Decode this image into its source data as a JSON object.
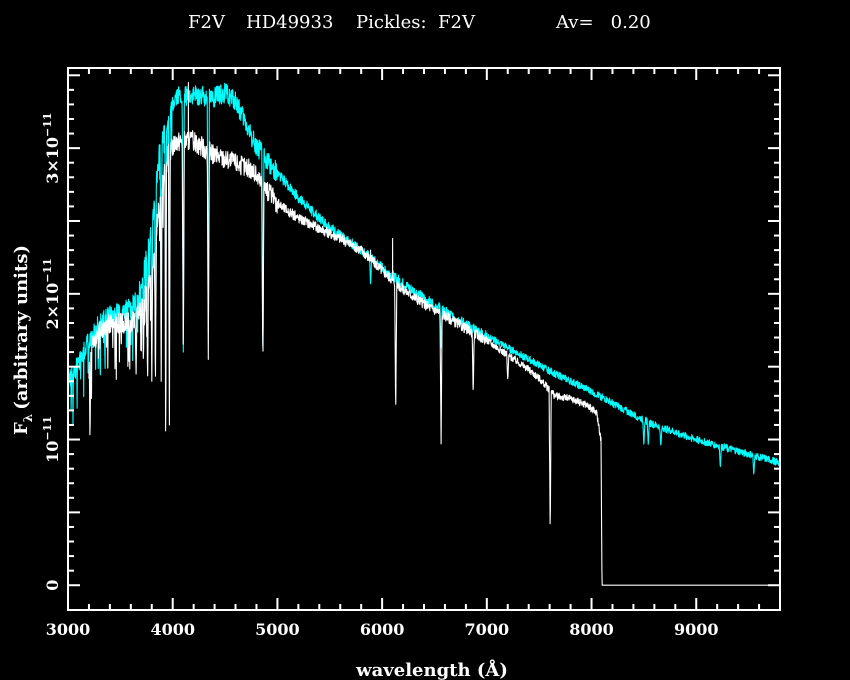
{
  "title": {
    "spectral_type": "F2V",
    "star": "HD49933",
    "template": "Pickles:  F2V",
    "extinction": "Av=   0.20"
  },
  "chart_data": {
    "type": "line",
    "xlabel": "wavelength (Å)",
    "ylabel": "F",
    "ylabel_sub": "λ",
    "ylabel_suffix": "(arbitrary units)",
    "xlim": [
      3000,
      9800
    ],
    "ylim": [
      -1.7e-12,
      3.55e-11
    ],
    "x_ticks": [
      {
        "value": 3000,
        "label": "3000"
      },
      {
        "value": 4000,
        "label": "4000"
      },
      {
        "value": 5000,
        "label": "5000"
      },
      {
        "value": 6000,
        "label": "6000"
      },
      {
        "value": 7000,
        "label": "7000"
      },
      {
        "value": 8000,
        "label": "8000"
      },
      {
        "value": 9000,
        "label": "9000"
      }
    ],
    "y_ticks": [
      {
        "value": 0,
        "mantissa": "0",
        "exponent": ""
      },
      {
        "value": 1e-11,
        "mantissa": "10",
        "exponent": "−11"
      },
      {
        "value": 2e-11,
        "mantissa": "2×10",
        "exponent": "−11"
      },
      {
        "value": 3e-11,
        "mantissa": "3×10",
        "exponent": "−11"
      }
    ],
    "grid": false,
    "colors": {
      "background": "#000000",
      "axes": "#ffffff",
      "observed": "#ffffff",
      "template": "#00ffff"
    },
    "series": [
      {
        "color": "#00ffff",
        "continuum": [
          [
            3000,
            1.4e-11
          ],
          [
            3100,
            1.52e-11
          ],
          [
            3200,
            1.68e-11
          ],
          [
            3300,
            1.8e-11
          ],
          [
            3400,
            1.85e-11
          ],
          [
            3500,
            1.87e-11
          ],
          [
            3600,
            1.9e-11
          ],
          [
            3700,
            2.05e-11
          ],
          [
            3800,
            2.45e-11
          ],
          [
            3870,
            2.95e-11
          ],
          [
            3950,
            3.2e-11
          ],
          [
            4030,
            3.36e-11
          ],
          [
            4200,
            3.36e-11
          ],
          [
            4400,
            3.35e-11
          ],
          [
            4500,
            3.38e-11
          ],
          [
            4600,
            3.32e-11
          ],
          [
            4750,
            3.08e-11
          ],
          [
            4860,
            2.95e-11
          ],
          [
            5000,
            2.83e-11
          ],
          [
            5200,
            2.66e-11
          ],
          [
            5400,
            2.52e-11
          ],
          [
            5600,
            2.4e-11
          ],
          [
            5800,
            2.3e-11
          ],
          [
            6000,
            2.18e-11
          ],
          [
            6200,
            2.07e-11
          ],
          [
            6400,
            1.97e-11
          ],
          [
            6600,
            1.88e-11
          ],
          [
            6800,
            1.79e-11
          ],
          [
            7000,
            1.71e-11
          ],
          [
            7200,
            1.63e-11
          ],
          [
            7400,
            1.55e-11
          ],
          [
            7600,
            1.47e-11
          ],
          [
            7800,
            1.4e-11
          ],
          [
            8000,
            1.33e-11
          ],
          [
            8200,
            1.25e-11
          ],
          [
            8400,
            1.17e-11
          ],
          [
            8600,
            1.1e-11
          ],
          [
            8800,
            1.05e-11
          ],
          [
            9000,
            1e-11
          ],
          [
            9200,
            9.6e-12
          ],
          [
            9400,
            9.2e-12
          ],
          [
            9600,
            8.8e-12
          ],
          [
            9800,
            8.4e-12
          ]
        ],
        "absorption_lines": [
          [
            3200,
            1.65e-11
          ],
          [
            3650,
            1.82e-11
          ],
          [
            3720,
            1.75e-11
          ],
          [
            3760,
            1.55e-11
          ],
          [
            3800,
            1.65e-11
          ],
          [
            3835,
            1.6e-11
          ],
          [
            3890,
            1.6e-11
          ],
          [
            3933,
            2e-11
          ],
          [
            3968,
            1.75e-11
          ],
          [
            4101,
            1.6e-11
          ],
          [
            4340,
            1.55e-11
          ],
          [
            4861,
            1.5e-11
          ],
          [
            5890,
            2.05e-11
          ],
          [
            6563,
            1.6e-11
          ],
          [
            8500,
            9.5e-12
          ],
          [
            8542,
            9.5e-12
          ],
          [
            8662,
            9.5e-12
          ],
          [
            9230,
            8e-12
          ],
          [
            9550,
            7.5e-12
          ]
        ]
      },
      {
        "color": "#ffffff",
        "continuum": [
          [
            3200,
            1.6e-11
          ],
          [
            3300,
            1.75e-11
          ],
          [
            3400,
            1.8e-11
          ],
          [
            3500,
            1.8e-11
          ],
          [
            3600,
            1.8e-11
          ],
          [
            3700,
            1.9e-11
          ],
          [
            3800,
            2.15e-11
          ],
          [
            3870,
            2.6e-11
          ],
          [
            3950,
            2.95e-11
          ],
          [
            4030,
            3.05e-11
          ],
          [
            4200,
            3.05e-11
          ],
          [
            4400,
            2.95e-11
          ],
          [
            4600,
            2.9e-11
          ],
          [
            4750,
            2.85e-11
          ],
          [
            4860,
            2.75e-11
          ],
          [
            5000,
            2.62e-11
          ],
          [
            5200,
            2.52e-11
          ],
          [
            5400,
            2.45e-11
          ],
          [
            5600,
            2.38e-11
          ],
          [
            5800,
            2.3e-11
          ],
          [
            6000,
            2.16e-11
          ],
          [
            6200,
            2.03e-11
          ],
          [
            6400,
            1.93e-11
          ],
          [
            6600,
            1.85e-11
          ],
          [
            6800,
            1.76e-11
          ],
          [
            7000,
            1.68e-11
          ],
          [
            7200,
            1.58e-11
          ],
          [
            7400,
            1.48e-11
          ],
          [
            7500,
            1.42e-11
          ],
          [
            7650,
            1.3e-11
          ],
          [
            7800,
            1.28e-11
          ],
          [
            7950,
            1.24e-11
          ],
          [
            8050,
            1.18e-11
          ],
          [
            8090,
            1e-11
          ],
          [
            8100,
            0.0
          ],
          [
            9800,
            0.0
          ]
        ],
        "absorption_lines": [
          [
            3210,
            9.5e-12
          ],
          [
            3650,
            1.45e-11
          ],
          [
            3720,
            1.5e-11
          ],
          [
            3760,
            1.35e-11
          ],
          [
            3800,
            1.4e-11
          ],
          [
            3835,
            1.3e-11
          ],
          [
            3890,
            1.4e-11
          ],
          [
            3933,
            8e-12
          ],
          [
            3968,
            1.1e-11
          ],
          [
            4101,
            1.5e-11
          ],
          [
            4340,
            1.55e-11
          ],
          [
            4861,
            1.48e-11
          ],
          [
            6130,
            1.15e-11
          ],
          [
            6563,
            9.7e-12
          ],
          [
            6870,
            1.3e-11
          ],
          [
            7200,
            1.4e-11
          ],
          [
            7605,
            3.2e-12
          ]
        ],
        "spikes": [
          [
            6100,
            2.38e-11
          ],
          [
            5890,
            2.3e-11
          ],
          [
            4150,
            3.45e-11
          ]
        ]
      }
    ]
  }
}
